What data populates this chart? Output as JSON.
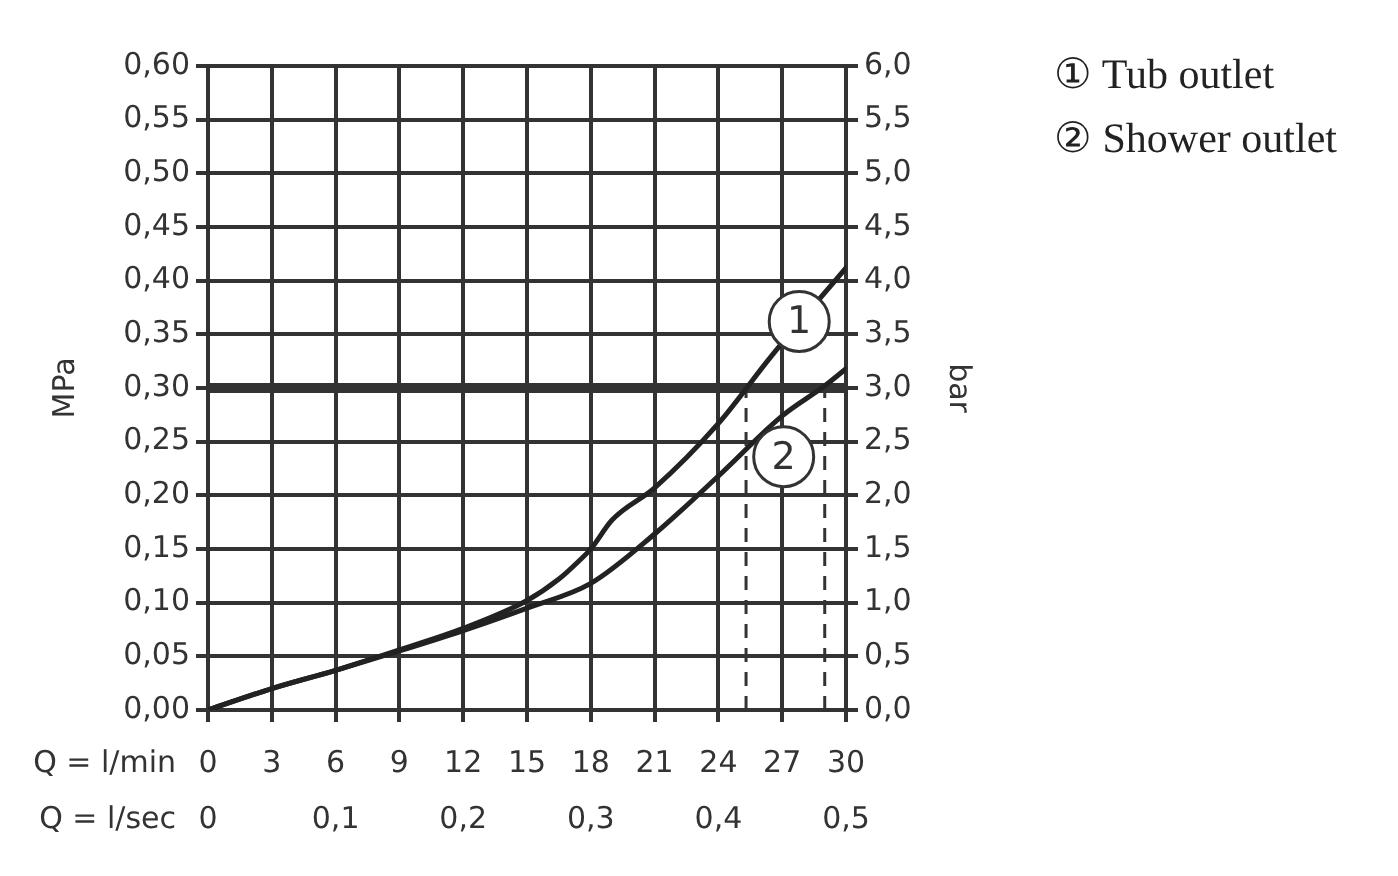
{
  "chart_data": {
    "type": "line",
    "xlabel": "Q = l/min",
    "ylabel": "MPa",
    "y2label": "bar",
    "x2label": "Q = l/sec",
    "series": [
      {
        "name": "① Tub outlet",
        "color": "#222222",
        "x": [
          0,
          3,
          6,
          9,
          12,
          15,
          16.5,
          17.5,
          18,
          19,
          21,
          24,
          26.5,
          30
        ],
        "values": [
          0,
          0.02,
          0.037,
          0.056,
          0.076,
          0.102,
          0.122,
          0.14,
          0.15,
          0.177,
          0.207,
          0.267,
          0.33,
          0.412
        ]
      },
      {
        "name": "② Shower outlet",
        "color": "#222222",
        "x": [
          0,
          3,
          6,
          9,
          12,
          15,
          18,
          21,
          24,
          27,
          29,
          30
        ],
        "values": [
          0,
          0.02,
          0.037,
          0.055,
          0.074,
          0.095,
          0.118,
          0.164,
          0.218,
          0.274,
          0.302,
          0.318
        ]
      }
    ],
    "xlim": [
      0,
      30
    ],
    "xticks": [
      0,
      3,
      6,
      9,
      12,
      15,
      18,
      21,
      24,
      27,
      30
    ],
    "x2lim": [
      0,
      0.5
    ],
    "x2ticks": [
      0,
      {
        "value": 0.1,
        "label": "0,1"
      },
      {
        "value": 0.2,
        "label": "0,2"
      },
      {
        "value": 0.3,
        "label": "0,3"
      },
      {
        "value": 0.4,
        "label": "0,4"
      },
      {
        "value": 0.5,
        "label": "0,5"
      }
    ],
    "ylim": [
      0,
      0.6
    ],
    "yticks": [
      {
        "value": 0,
        "label": "0,00"
      },
      {
        "value": 0.05,
        "label": "0,05"
      },
      {
        "value": 0.1,
        "label": "0,10"
      },
      {
        "value": 0.15,
        "label": "0,15"
      },
      {
        "value": 0.2,
        "label": "0,20"
      },
      {
        "value": 0.25,
        "label": "0,25"
      },
      {
        "value": 0.3,
        "label": "0,30"
      },
      {
        "value": 0.35,
        "label": "0,35"
      },
      {
        "value": 0.4,
        "label": "0,40"
      },
      {
        "value": 0.45,
        "label": "0,45"
      },
      {
        "value": 0.5,
        "label": "0,50"
      },
      {
        "value": 0.55,
        "label": "0,55"
      },
      {
        "value": 0.6,
        "label": "0,60"
      }
    ],
    "y2lim": [
      0,
      6
    ],
    "y2ticks": [
      {
        "value": 0,
        "label": "0,0"
      },
      {
        "value": 0.5,
        "label": "0,5"
      },
      {
        "value": 1,
        "label": "1,0"
      },
      {
        "value": 1.5,
        "label": "1,5"
      },
      {
        "value": 2,
        "label": "2,0"
      },
      {
        "value": 2.5,
        "label": "2,5"
      },
      {
        "value": 3,
        "label": "3,0"
      },
      {
        "value": 3.5,
        "label": "3,5"
      },
      {
        "value": 4,
        "label": "4,0"
      },
      {
        "value": 4.5,
        "label": "4,5"
      },
      {
        "value": 5,
        "label": "5,0"
      },
      {
        "value": 5.5,
        "label": "5,5"
      },
      {
        "value": 6,
        "label": "6,0"
      }
    ],
    "ref_lines": [
      {
        "axis": "y",
        "value": 0.3,
        "color": "#333333",
        "line_style": "solid"
      },
      {
        "axis": "x",
        "value": 25.3,
        "color": "#333333",
        "line_style": "dashed"
      },
      {
        "axis": "x",
        "value": 29,
        "color": "#333333",
        "line_style": "dashed"
      }
    ],
    "annotations": [
      {
        "text": "1",
        "x": 27.8,
        "y": 0.362
      },
      {
        "text": "2",
        "x": 27.07,
        "y": 0.236
      }
    ],
    "grid": true,
    "legend": "top right"
  }
}
